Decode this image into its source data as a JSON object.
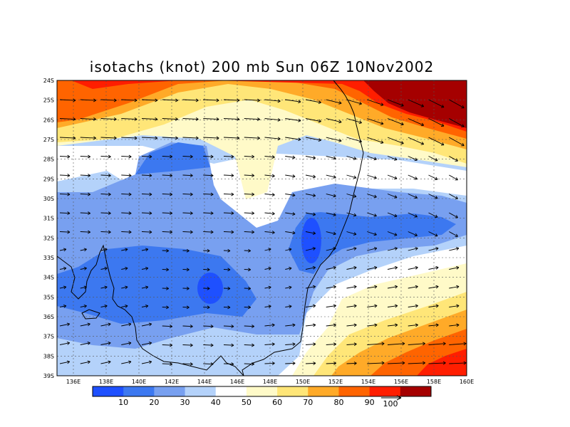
{
  "title": "isotachs (knot) 200 mb Sun 06Z 10Nov2002",
  "lat_labels": [
    "24S",
    "25S",
    "26S",
    "27S",
    "28S",
    "29S",
    "30S",
    "31S",
    "32S",
    "33S",
    "34S",
    "35S",
    "36S",
    "37S",
    "38S",
    "39S"
  ],
  "lon_labels": [
    "136E",
    "138E",
    "140E",
    "142E",
    "144E",
    "146E",
    "148E",
    "150E",
    "152E",
    "154E",
    "156E",
    "158E",
    "160E"
  ],
  "colorbar": {
    "colors": [
      "#1e50ff",
      "#3c78f0",
      "#78a0f0",
      "#b4d2fa",
      "#ffffff",
      "#fffac8",
      "#ffe678",
      "#ffaa28",
      "#ff6400",
      "#ff1e00",
      "#a50000"
    ],
    "labels": [
      "10",
      "20",
      "30",
      "40",
      "50",
      "60",
      "70",
      "80",
      "90"
    ]
  },
  "vector_reference": "100",
  "chart_data": {
    "type": "heatmap",
    "title": "isotachs (knot) 200 mb Sun 06Z 10Nov2002",
    "variable": "isotachs (knot)",
    "level": "200 mb",
    "valid_time": "Sun 06Z 10Nov2002",
    "x_range": [
      135,
      160
    ],
    "y_range": [
      -39,
      -24
    ],
    "contour_levels": [
      10,
      20,
      30,
      40,
      50,
      60,
      70,
      80,
      90
    ],
    "overlay": "wind vectors",
    "vector_reference": 100,
    "regions": [
      {
        "description": "max > 90 kt",
        "lon": 157,
        "lat": -26
      },
      {
        "description": "min < 10 kt",
        "lon": 144.5,
        "lat": -34.8
      },
      {
        "description": "min < 10 kt",
        "lon": 150.5,
        "lat": -32.5
      },
      {
        "description": "80-90 kt",
        "lon": 158,
        "lat": -38.5
      }
    ]
  }
}
